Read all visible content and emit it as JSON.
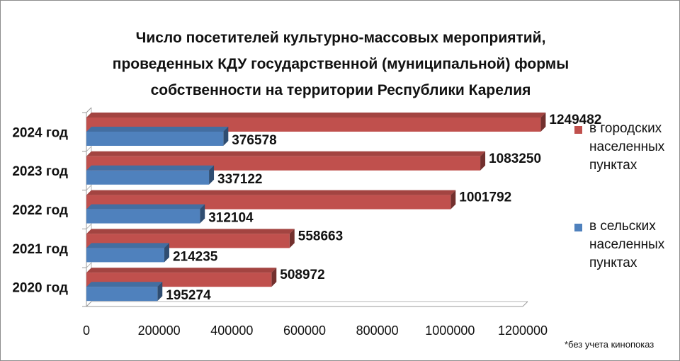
{
  "chart_data": {
    "type": "bar",
    "orientation": "horizontal",
    "title_lines": [
      "Число посетителей культурно-массовых мероприятий,",
      "проведенных КДУ государственной (муниципальной) формы",
      "собственности на территории Республики Карелия"
    ],
    "categories": [
      "2024 год",
      "2023 год",
      "2022 год",
      "2021 год",
      "2020 год"
    ],
    "series": [
      {
        "name": "в городских населенных пунктах",
        "color": "#c0504d",
        "values": [
          1249482,
          1083250,
          1001792,
          558663,
          508972
        ]
      },
      {
        "name": "в сельских населенных пунктах",
        "color": "#4f81bd",
        "values": [
          376578,
          337122,
          312104,
          214235,
          195274
        ]
      }
    ],
    "xlim": [
      0,
      1200000
    ],
    "xticks": [
      "0",
      "200000",
      "400000",
      "600000",
      "800000",
      "1000000",
      "1200000"
    ],
    "legend_position": "right",
    "data_labels": true,
    "grid": false,
    "style": "3d"
  },
  "legend": {
    "items": [
      {
        "lines": [
          "в городских",
          "населенных",
          "пунктах"
        ],
        "color": "#c0504d"
      },
      {
        "lines": [
          "в сельских",
          "населенных",
          "пунктах"
        ],
        "color": "#4f81bd"
      }
    ]
  },
  "footnote": "*без учета кинопоказ"
}
